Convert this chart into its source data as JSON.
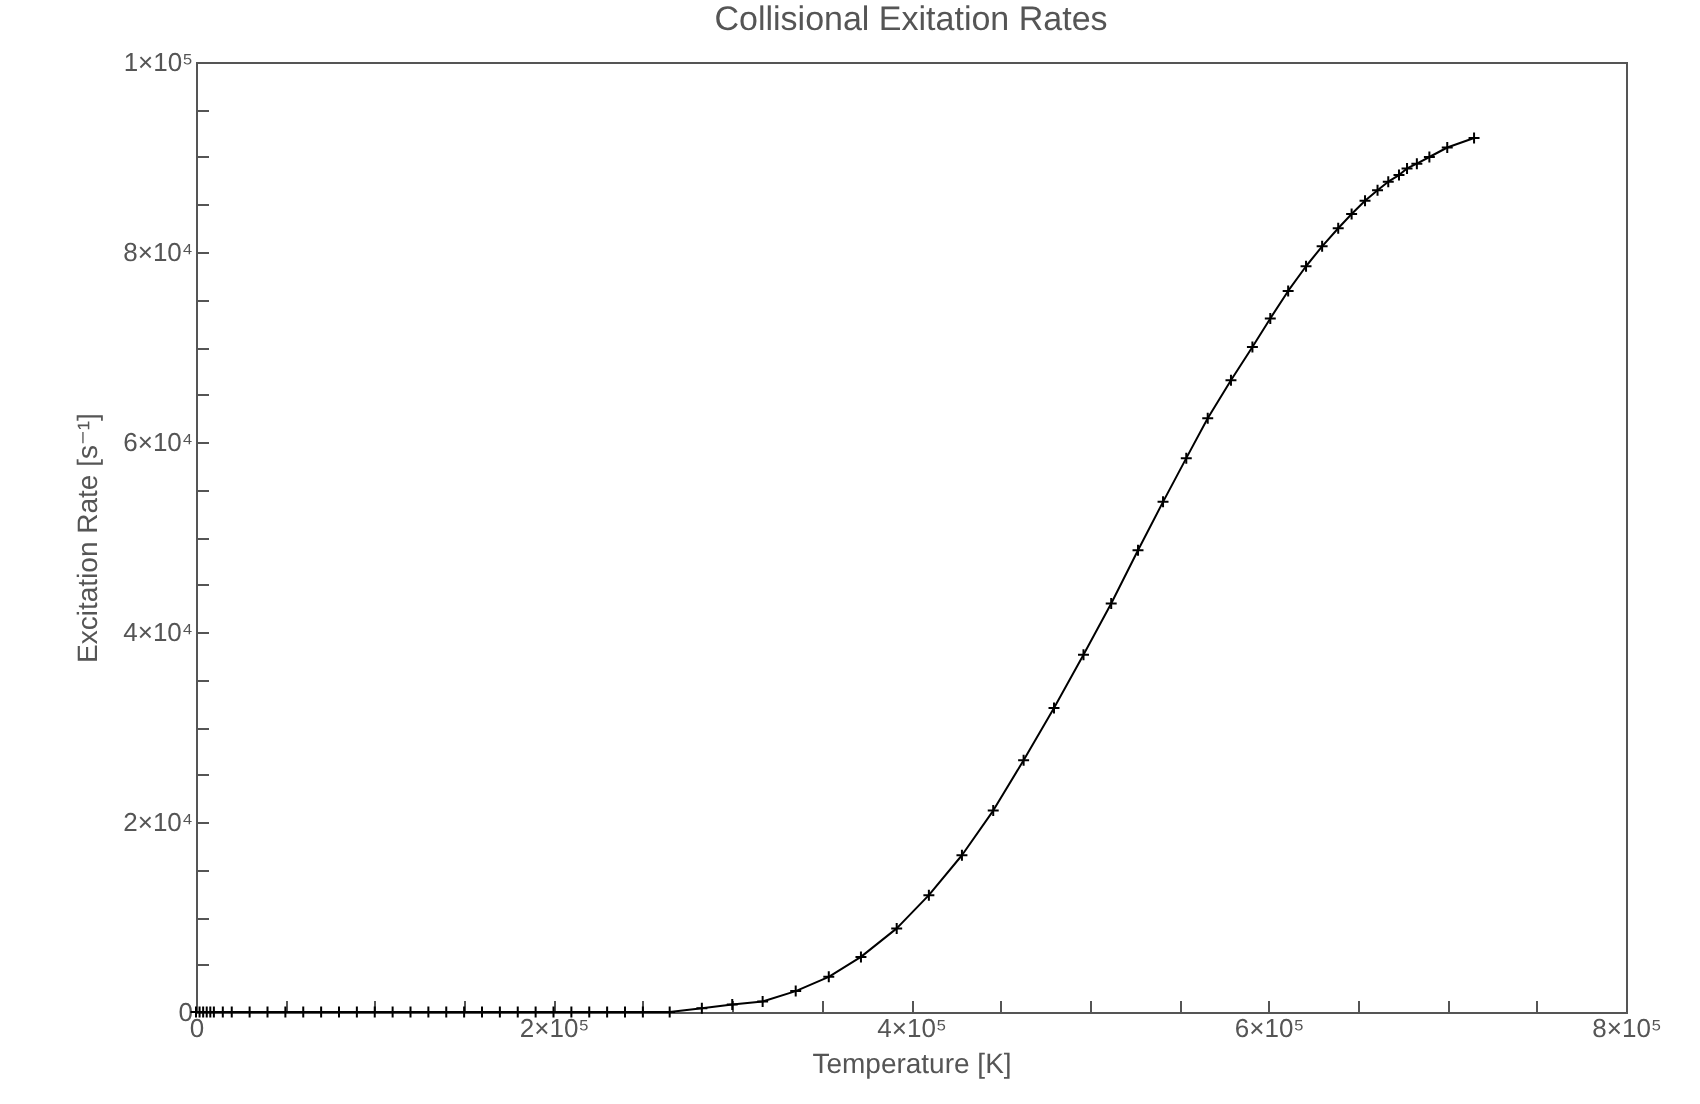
{
  "chart_data": {
    "type": "line",
    "title": "Collisional Exitation Rates",
    "xlabel": "Temperature [K]",
    "ylabel": "Excitation Rate [s⁻¹]",
    "xlim": [
      0,
      800000
    ],
    "ylim": [
      0,
      100000
    ],
    "xticks": [
      0,
      {
        "value": 50000,
        "label": null
      },
      {
        "value": 100000,
        "label": null
      },
      {
        "value": 150000,
        "label": null
      },
      {
        "value": 200000,
        "label": "2×10⁵"
      },
      {
        "value": 250000,
        "label": null
      },
      {
        "value": 300000,
        "label": null
      },
      {
        "value": 350000,
        "label": null
      },
      {
        "value": 400000,
        "label": "4×10⁵"
      },
      {
        "value": 450000,
        "label": null
      },
      {
        "value": 500000,
        "label": null
      },
      {
        "value": 550000,
        "label": null
      },
      {
        "value": 600000,
        "label": "6×10⁵"
      },
      {
        "value": 650000,
        "label": null
      },
      {
        "value": 700000,
        "label": null
      },
      {
        "value": 750000,
        "label": null
      },
      {
        "value": 800000,
        "label": "8×10⁵"
      }
    ],
    "yticks": [
      0,
      {
        "value": 5000,
        "label": null
      },
      {
        "value": 10000,
        "label": null
      },
      {
        "value": 15000,
        "label": null
      },
      {
        "value": 20000,
        "label": "2×10⁴"
      },
      {
        "value": 25000,
        "label": null
      },
      {
        "value": 30000,
        "label": null
      },
      {
        "value": 35000,
        "label": null
      },
      {
        "value": 40000,
        "label": "4×10⁴"
      },
      {
        "value": 45000,
        "label": null
      },
      {
        "value": 50000,
        "label": null
      },
      {
        "value": 55000,
        "label": null
      },
      {
        "value": 60000,
        "label": "6×10⁴"
      },
      {
        "value": 65000,
        "label": null
      },
      {
        "value": 70000,
        "label": null
      },
      {
        "value": 75000,
        "label": null
      },
      {
        "value": 80000,
        "label": "8×10⁴"
      },
      {
        "value": 85000,
        "label": null
      },
      {
        "value": 90000,
        "label": null
      },
      {
        "value": 95000,
        "label": null
      },
      {
        "value": 100000,
        "label": "1×10⁵"
      }
    ],
    "marker": "cross",
    "grid": false,
    "series": [
      {
        "color": "#000000",
        "x": [
          0,
          2000,
          4000,
          6000,
          8000,
          10000,
          15000,
          20000,
          30000,
          40000,
          50000,
          60000,
          70000,
          80000,
          90000,
          100000,
          110000,
          120000,
          130000,
          140000,
          150000,
          160000,
          170000,
          180000,
          190000,
          200000,
          210000,
          220000,
          230000,
          240000,
          250000,
          265000,
          283000,
          300000,
          317000,
          335500,
          354000,
          372000,
          392000,
          410000,
          428500,
          446000,
          463000,
          480000,
          496500,
          512000,
          527000,
          541000,
          554000,
          566000,
          579000,
          591000,
          601000,
          611000,
          621000,
          630000,
          639000,
          646500,
          654000,
          661000,
          667000,
          673000,
          677500,
          683000,
          690000,
          700000,
          715000
        ],
        "values": [
          0,
          0,
          0,
          0,
          0,
          0,
          0,
          0,
          0,
          0,
          0,
          0,
          0,
          0,
          0,
          0,
          0,
          0,
          0,
          0,
          0,
          0,
          0,
          0,
          0,
          0,
          0,
          0,
          0,
          0,
          0,
          0,
          400,
          800,
          1100,
          2200,
          3700,
          5800,
          8800,
          12300,
          16500,
          21200,
          26500,
          32000,
          37600,
          43000,
          48600,
          53700,
          58300,
          62500,
          66500,
          70000,
          73000,
          75900,
          78500,
          80600,
          82500,
          84000,
          85400,
          86500,
          87400,
          88100,
          88800,
          89300,
          90000,
          91000,
          92000
        ]
      }
    ]
  }
}
